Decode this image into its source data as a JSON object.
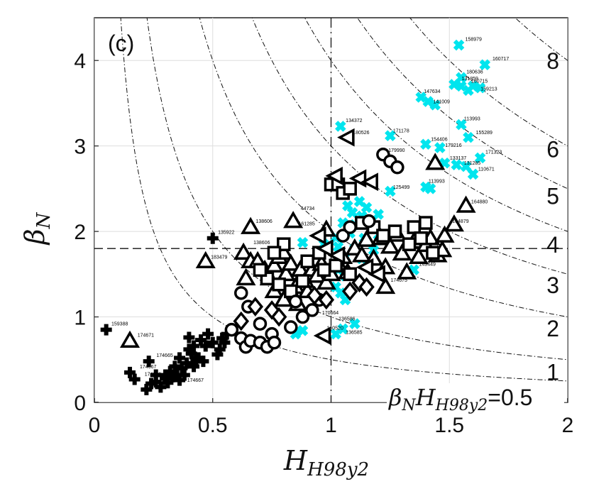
{
  "chart_data": {
    "type": "scatter",
    "panel_label": "(c)",
    "xlabel_main": "H",
    "xlabel_sub": "H98y2",
    "ylabel_main": "β",
    "ylabel_sub": "N",
    "xlim": [
      0,
      2
    ],
    "ylim": [
      0,
      4.5
    ],
    "x_ticks": [
      0,
      0.5,
      1,
      1.5,
      2
    ],
    "x_tick_labels": [
      "0",
      "0.5",
      "1",
      "1.5",
      "2"
    ],
    "y_ticks": [
      0,
      1,
      2,
      3,
      4
    ],
    "y_tick_labels": [
      "0",
      "1",
      "2",
      "3",
      "4"
    ],
    "grid": true,
    "reference_lines": {
      "vertical_x": 1.0,
      "horizontal_y": 1.8
    },
    "product_curves": [
      0.5,
      1,
      2,
      3,
      4,
      5,
      6,
      8
    ],
    "product_labels": [
      {
        "text": "8",
        "y": 4.0
      },
      {
        "text": "6",
        "y": 2.97
      },
      {
        "text": "5",
        "y": 2.42
      },
      {
        "text": "4",
        "y": 1.85
      },
      {
        "text": "3",
        "y": 1.38
      },
      {
        "text": "2",
        "y": 0.87
      },
      {
        "text": "1",
        "y": 0.36
      }
    ],
    "product_annotation": {
      "text": "=0.5",
      "var_main": "β",
      "var_sub1": "N",
      "var_mid": "H",
      "var_sub2": "H98y2"
    },
    "series": [
      {
        "marker": "cross-cyan",
        "color": "#00e5ee",
        "points": [
          [
            1.54,
            4.18
          ],
          [
            1.65,
            3.95
          ],
          [
            1.55,
            3.8
          ],
          [
            1.52,
            3.72
          ],
          [
            1.55,
            3.7
          ],
          [
            1.58,
            3.65
          ],
          [
            1.6,
            3.7
          ],
          [
            1.63,
            3.68
          ],
          [
            1.38,
            3.57
          ],
          [
            1.41,
            3.52
          ],
          [
            1.44,
            3.48
          ],
          [
            1.55,
            3.25
          ],
          [
            1.04,
            3.23
          ],
          [
            1.58,
            3.1
          ],
          [
            1.25,
            3.12
          ],
          [
            1.4,
            3.02
          ],
          [
            1.46,
            2.98
          ],
          [
            1.63,
            2.86
          ],
          [
            1.48,
            2.8
          ],
          [
            1.53,
            2.78
          ],
          [
            1.57,
            2.76
          ],
          [
            1.6,
            2.67
          ],
          [
            1.4,
            2.52
          ],
          [
            1.42,
            2.5
          ],
          [
            1.25,
            2.47
          ],
          [
            1.07,
            2.3
          ],
          [
            1.12,
            2.35
          ],
          [
            1.15,
            2.28
          ],
          [
            1.09,
            2.22
          ],
          [
            1.13,
            2.18
          ],
          [
            1.2,
            2.2
          ],
          [
            1.05,
            2.1
          ],
          [
            1.1,
            2.08
          ],
          [
            1.08,
            1.98
          ],
          [
            1.02,
            1.93
          ],
          [
            1.14,
            1.92
          ],
          [
            1.2,
            1.9
          ],
          [
            0.88,
            1.87
          ],
          [
            0.97,
            1.85
          ],
          [
            1.03,
            1.82
          ],
          [
            1.1,
            1.8
          ],
          [
            1.18,
            1.78
          ],
          [
            1.06,
            1.7
          ],
          [
            1.13,
            1.68
          ],
          [
            1.03,
            1.55
          ],
          [
            1.06,
            1.48
          ],
          [
            1.35,
            1.55
          ],
          [
            1.02,
            1.35
          ],
          [
            1.04,
            1.28
          ],
          [
            1.06,
            1.2
          ],
          [
            0.85,
            0.8
          ],
          [
            0.88,
            0.84
          ],
          [
            1.02,
            0.8
          ],
          [
            1.05,
            0.86
          ],
          [
            1.1,
            0.92
          ]
        ]
      },
      {
        "marker": "cross-black",
        "color": "#000000",
        "points": [
          [
            0.05,
            0.85
          ],
          [
            0.15,
            0.35
          ],
          [
            0.17,
            0.27
          ],
          [
            0.22,
            0.15
          ],
          [
            0.24,
            0.22
          ],
          [
            0.26,
            0.32
          ],
          [
            0.28,
            0.18
          ],
          [
            0.3,
            0.28
          ],
          [
            0.31,
            0.23
          ],
          [
            0.32,
            0.36
          ],
          [
            0.33,
            0.3
          ],
          [
            0.34,
            0.42
          ],
          [
            0.35,
            0.32
          ],
          [
            0.36,
            0.26
          ],
          [
            0.37,
            0.4
          ],
          [
            0.38,
            0.32
          ],
          [
            0.36,
            0.52
          ],
          [
            0.39,
            0.46
          ],
          [
            0.4,
            0.62
          ],
          [
            0.4,
            0.76
          ],
          [
            0.41,
            0.57
          ],
          [
            0.42,
            0.66
          ],
          [
            0.43,
            0.5
          ],
          [
            0.44,
            0.52
          ],
          [
            0.45,
            0.73
          ],
          [
            0.46,
            0.48
          ],
          [
            0.47,
            0.66
          ],
          [
            0.48,
            0.8
          ],
          [
            0.5,
            0.7
          ],
          [
            0.5,
            1.92
          ],
          [
            0.52,
            0.56
          ],
          [
            0.53,
            0.62
          ],
          [
            0.54,
            0.75
          ],
          [
            0.55,
            0.7
          ],
          [
            0.56,
            0.8
          ],
          [
            0.23,
            0.48
          ],
          [
            0.26,
            0.24
          ],
          [
            0.38,
            0.32
          ],
          [
            0.42,
            0.42
          ],
          [
            0.3,
            0.32
          ]
        ]
      },
      {
        "marker": "triangle-up",
        "color": "#000000",
        "points": [
          [
            0.15,
            0.72
          ],
          [
            0.47,
            1.65
          ],
          [
            0.66,
            2.05
          ],
          [
            0.84,
            2.12
          ],
          [
            0.63,
            1.75
          ],
          [
            0.66,
            1.65
          ],
          [
            0.64,
            1.45
          ],
          [
            0.69,
            1.65
          ],
          [
            0.72,
            1.55
          ],
          [
            0.74,
            1.45
          ],
          [
            0.76,
            1.6
          ],
          [
            0.78,
            1.7
          ],
          [
            0.8,
            1.75
          ],
          [
            0.81,
            1.5
          ],
          [
            0.83,
            1.62
          ],
          [
            0.85,
            1.35
          ],
          [
            0.87,
            1.55
          ],
          [
            0.89,
            1.42
          ],
          [
            0.92,
            1.55
          ],
          [
            0.94,
            1.48
          ],
          [
            0.96,
            1.62
          ],
          [
            0.98,
            1.4
          ],
          [
            1.0,
            1.5
          ],
          [
            1.03,
            1.62
          ],
          [
            1.05,
            1.7
          ],
          [
            1.07,
            1.52
          ],
          [
            1.1,
            1.8
          ],
          [
            1.13,
            1.72
          ],
          [
            1.15,
            1.9
          ],
          [
            1.18,
            1.68
          ],
          [
            1.21,
            1.92
          ],
          [
            1.23,
            1.58
          ],
          [
            1.25,
            1.82
          ],
          [
            1.28,
            1.96
          ],
          [
            1.3,
            1.74
          ],
          [
            1.32,
            1.52
          ],
          [
            1.35,
            1.88
          ],
          [
            1.37,
            1.7
          ],
          [
            1.4,
            1.84
          ],
          [
            1.42,
            1.92
          ],
          [
            1.45,
            1.72
          ],
          [
            1.48,
            1.95
          ],
          [
            1.52,
            2.08
          ],
          [
            1.47,
            1.78
          ],
          [
            1.44,
            2.8
          ],
          [
            1.57,
            2.3
          ],
          [
            1.23,
            1.35
          ],
          [
            0.76,
            1.3
          ],
          [
            0.8,
            1.2
          ],
          [
            0.86,
            1.15
          ],
          [
            0.9,
            1.3
          ],
          [
            0.98,
            2.02
          ]
        ]
      },
      {
        "marker": "square",
        "color": "#000000",
        "points": [
          [
            1.0,
            2.55
          ],
          [
            1.03,
            2.55
          ],
          [
            1.05,
            2.45
          ],
          [
            1.08,
            2.5
          ],
          [
            1.13,
            2.1
          ],
          [
            1.18,
            2.05
          ],
          [
            1.22,
            1.95
          ],
          [
            1.27,
            2.0
          ],
          [
            1.35,
            2.05
          ],
          [
            1.4,
            2.1
          ],
          [
            1.33,
            1.85
          ],
          [
            1.38,
            1.92
          ],
          [
            1.43,
            1.75
          ],
          [
            0.8,
            1.85
          ],
          [
            0.76,
            1.75
          ],
          [
            0.9,
            1.65
          ],
          [
            0.95,
            1.75
          ],
          [
            0.97,
            1.55
          ],
          [
            1.02,
            1.6
          ],
          [
            1.08,
            1.5
          ],
          [
            0.78,
            1.38
          ],
          [
            0.83,
            1.3
          ],
          [
            0.88,
            1.42
          ],
          [
            0.73,
            1.45
          ],
          [
            0.7,
            1.55
          ]
        ]
      },
      {
        "marker": "circle",
        "color": "#000000",
        "points": [
          [
            1.22,
            2.9
          ],
          [
            1.25,
            2.82
          ],
          [
            1.28,
            2.75
          ],
          [
            0.62,
            1.28
          ],
          [
            0.65,
            1.12
          ],
          [
            0.7,
            0.92
          ],
          [
            0.75,
            0.8
          ],
          [
            0.83,
            0.88
          ],
          [
            0.85,
            1.18
          ],
          [
            0.88,
            1.0
          ],
          [
            0.62,
            0.75
          ],
          [
            0.64,
            0.65
          ],
          [
            0.66,
            0.72
          ],
          [
            0.7,
            0.7
          ],
          [
            0.73,
            0.65
          ],
          [
            0.76,
            0.7
          ],
          [
            1.05,
            1.95
          ],
          [
            1.08,
            2.05
          ],
          [
            1.16,
            2.12
          ],
          [
            0.92,
            1.08
          ],
          [
            0.95,
            1.2
          ],
          [
            0.58,
            0.85
          ]
        ]
      },
      {
        "marker": "triangle-left",
        "color": "#000000",
        "points": [
          [
            1.07,
            3.1
          ],
          [
            1.02,
            2.65
          ],
          [
            1.12,
            2.62
          ],
          [
            1.17,
            2.58
          ],
          [
            0.95,
            1.95
          ],
          [
            0.98,
            1.8
          ],
          [
            1.03,
            1.72
          ],
          [
            0.97,
            0.78
          ],
          [
            1.15,
            1.58
          ],
          [
            1.2,
            1.5
          ]
        ]
      },
      {
        "marker": "diamond",
        "color": "#000000",
        "points": [
          [
            1.08,
            1.3
          ],
          [
            1.12,
            1.4
          ],
          [
            1.15,
            1.35
          ],
          [
            0.93,
            1.25
          ],
          [
            0.98,
            1.2
          ],
          [
            0.75,
            1.08
          ],
          [
            0.78,
            1.0
          ],
          [
            0.68,
            1.12
          ],
          [
            0.62,
            0.95
          ]
        ]
      }
    ],
    "point_labels": [
      {
        "text": "158979",
        "x": 1.555,
        "y": 4.23
      },
      {
        "text": "160717",
        "x": 1.67,
        "y": 4.0
      },
      {
        "text": "180636",
        "x": 1.56,
        "y": 3.85
      },
      {
        "text": "131859",
        "x": 1.54,
        "y": 3.77
      },
      {
        "text": "160715",
        "x": 1.58,
        "y": 3.74
      },
      {
        "text": "159213",
        "x": 1.62,
        "y": 3.65
      },
      {
        "text": "147634",
        "x": 1.38,
        "y": 3.62
      },
      {
        "text": "141009",
        "x": 1.42,
        "y": 3.5
      },
      {
        "text": "134372",
        "x": 1.05,
        "y": 3.28
      },
      {
        "text": "113993",
        "x": 1.55,
        "y": 3.3
      },
      {
        "text": "171178",
        "x": 1.25,
        "y": 3.16
      },
      {
        "text": "155289",
        "x": 1.6,
        "y": 3.14
      },
      {
        "text": "180526",
        "x": 1.08,
        "y": 3.14
      },
      {
        "text": "154406",
        "x": 1.41,
        "y": 3.06
      },
      {
        "text": "179216",
        "x": 1.47,
        "y": 2.99
      },
      {
        "text": "179990",
        "x": 1.23,
        "y": 2.93
      },
      {
        "text": "171323",
        "x": 1.64,
        "y": 2.91
      },
      {
        "text": "133137",
        "x": 1.49,
        "y": 2.84
      },
      {
        "text": "131285",
        "x": 1.55,
        "y": 2.78
      },
      {
        "text": "110671",
        "x": 1.61,
        "y": 2.71
      },
      {
        "text": "113993",
        "x": 1.4,
        "y": 2.57
      },
      {
        "text": "125499",
        "x": 1.25,
        "y": 2.5
      },
      {
        "text": "164880",
        "x": 1.58,
        "y": 2.33
      },
      {
        "text": "44734",
        "x": 0.86,
        "y": 2.25
      },
      {
        "text": "138606",
        "x": 0.67,
        "y": 2.1
      },
      {
        "text": "161285",
        "x": 0.85,
        "y": 2.07
      },
      {
        "text": "164879",
        "x": 1.5,
        "y": 2.1
      },
      {
        "text": "135922",
        "x": 0.51,
        "y": 1.97
      },
      {
        "text": "138606",
        "x": 0.66,
        "y": 1.85
      },
      {
        "text": "183479",
        "x": 0.48,
        "y": 1.68
      },
      {
        "text": "149449",
        "x": 1.36,
        "y": 1.6
      },
      {
        "text": "174675",
        "x": 1.24,
        "y": 1.41
      },
      {
        "text": "170664",
        "x": 0.95,
        "y": 1.03
      },
      {
        "text": "136586",
        "x": 1.02,
        "y": 0.96
      },
      {
        "text": "180520",
        "x": 0.97,
        "y": 0.85
      },
      {
        "text": "136585",
        "x": 1.05,
        "y": 0.8
      },
      {
        "text": "159388",
        "x": 0.06,
        "y": 0.9
      },
      {
        "text": "174671",
        "x": 0.17,
        "y": 0.77
      },
      {
        "text": "174665",
        "x": 0.25,
        "y": 0.53
      },
      {
        "text": "174667",
        "x": 0.18,
        "y": 0.4
      },
      {
        "text": "174663",
        "x": 0.2,
        "y": 0.31
      },
      {
        "text": "174667",
        "x": 0.38,
        "y": 0.24
      }
    ]
  }
}
